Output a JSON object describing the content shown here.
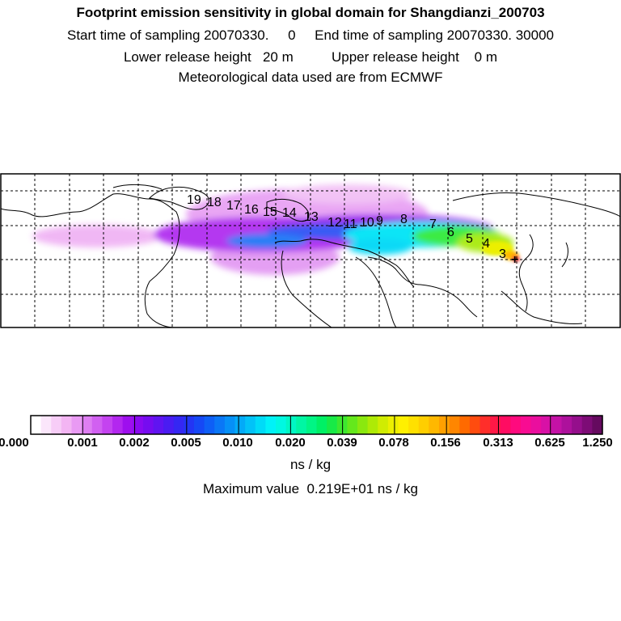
{
  "header": {
    "title": "Footprint emission sensitivity in global domain for Shangdianzi_200703",
    "sampling_line": "Start time of sampling 20070330.     0     End time of sampling 20070330. 30000",
    "release_line": "Lower release height   20 m          Upper release height    0 m",
    "met_line": "Meteorological data used are from ECMWF"
  },
  "map": {
    "grid_lines": true,
    "trajectory_labels": [
      "3",
      "4",
      "5",
      "6",
      "7",
      "8",
      "9",
      "10",
      "11",
      "12",
      "13",
      "14",
      "15",
      "16",
      "17",
      "18",
      "19"
    ],
    "release_marker": "+"
  },
  "colorbar": {
    "tick_labels": [
      "0.000",
      "0.001",
      "0.002",
      "0.005",
      "0.010",
      "0.020",
      "0.039",
      "0.078",
      "0.156",
      "0.313",
      "0.625",
      "1.250"
    ],
    "colors": [
      "#ffffff",
      "#fbe6fb",
      "#f7cdf7",
      "#f3b5f3",
      "#e99af3",
      "#de7ef2",
      "#d160f1",
      "#c443f0",
      "#b327ef",
      "#9e0fee",
      "#8a0af0",
      "#760cf0",
      "#6014f1",
      "#4a1cf2",
      "#3527f3",
      "#2335f4",
      "#1648f5",
      "#0e5ff6",
      "#0a77f6",
      "#0690f7",
      "#03aaf8",
      "#02c2f8",
      "#00dbf8",
      "#00f2f8",
      "#00f8e2",
      "#00f7c4",
      "#00f6a4",
      "#00f585",
      "#00f065",
      "#18ea47",
      "#3de82f",
      "#64e81c",
      "#8ae80f",
      "#aeea06",
      "#d0ec02",
      "#ecef00",
      "#fff000",
      "#ffe000",
      "#ffce00",
      "#ffb800",
      "#ffa000",
      "#ff8600",
      "#ff6a00",
      "#ff4c0f",
      "#ff2e2a",
      "#ff1846",
      "#ff0c62",
      "#ff0a7e",
      "#f80c92",
      "#ea0e9e",
      "#d811a6",
      "#c412a6",
      "#ad119c",
      "#950f8c",
      "#7d0c76",
      "#650a5f"
    ],
    "unit": "ns / kg",
    "max_value_text": "Maximum value  0.219E+01 ns / kg"
  }
}
